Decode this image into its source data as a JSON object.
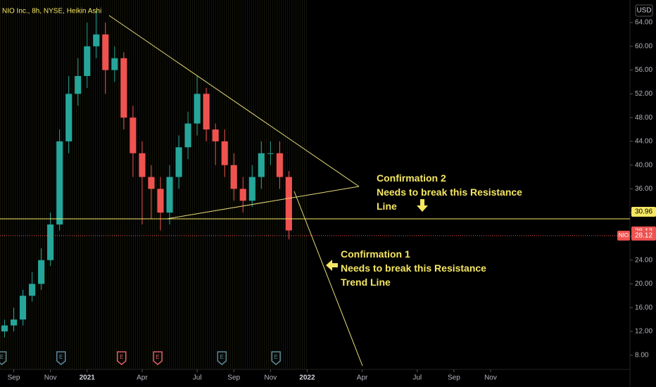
{
  "chart_data": {
    "type": "candlestick",
    "title": "NIO Inc., 8h, NYSE, Heikin Ashi",
    "currency": "USD",
    "x": [
      -0.5,
      0,
      0.5,
      1,
      1.5,
      2,
      2.5,
      3,
      3.5,
      4,
      4.5,
      5,
      5.5,
      6,
      6.5,
      7,
      7.5,
      8,
      8.5,
      9,
      9.5,
      10,
      10.5,
      11,
      11.5,
      12,
      12.5,
      13,
      13.5,
      14,
      14.5,
      15
    ],
    "open": [
      12,
      13,
      14,
      18,
      20,
      24,
      30,
      44,
      52,
      55,
      60,
      62,
      56,
      58,
      48,
      42,
      38,
      36,
      32,
      38,
      43,
      47,
      52,
      46,
      44,
      40,
      36,
      34,
      38,
      42,
      42,
      38
    ],
    "high": [
      14,
      16,
      19,
      22,
      26,
      32,
      46,
      55,
      58,
      64,
      66,
      64,
      60,
      59,
      50,
      44,
      40,
      38,
      40,
      45,
      49,
      55,
      53,
      47,
      46,
      42,
      38,
      40,
      44,
      44,
      44,
      39
    ],
    "low": [
      11,
      12,
      13,
      17,
      19,
      23,
      29,
      42,
      50,
      53,
      58,
      52,
      54,
      46,
      38,
      30,
      31,
      29,
      30,
      36,
      41,
      45,
      44,
      40,
      38,
      34,
      32,
      33,
      36,
      40,
      36,
      27.5
    ],
    "close": [
      13,
      14,
      18,
      20,
      24,
      30,
      44,
      52,
      55,
      60,
      62,
      56,
      58,
      48,
      42,
      38,
      36,
      32,
      38,
      43,
      47,
      52,
      46,
      44,
      40,
      36,
      34,
      38,
      42,
      42,
      38,
      29
    ],
    "up_color": "#26a69a",
    "down_color": "#ef5350",
    "xlim": [
      -0.75,
      33.6
    ],
    "xticks": [
      {
        "value": 0,
        "label": "Sep"
      },
      {
        "value": 2,
        "label": "Nov"
      },
      {
        "value": 4,
        "label": "2021"
      },
      {
        "value": 7,
        "label": "Apr"
      },
      {
        "value": 10,
        "label": "Jul"
      },
      {
        "value": 12,
        "label": "Sep"
      },
      {
        "value": 14,
        "label": "Nov"
      },
      {
        "value": 16,
        "label": "2022"
      },
      {
        "value": 19,
        "label": "Apr"
      },
      {
        "value": 22,
        "label": "Jul"
      },
      {
        "value": 24,
        "label": "Sep"
      },
      {
        "value": 26,
        "label": "Nov"
      }
    ],
    "ylim": [
      5.6,
      67.8
    ],
    "yticks": [
      {
        "value": 8,
        "label": "8.00"
      },
      {
        "value": 12,
        "label": "12.00"
      },
      {
        "value": 16,
        "label": "16.00"
      },
      {
        "value": 20,
        "label": "20.00"
      },
      {
        "value": 24,
        "label": "24.00"
      },
      {
        "value": 28,
        "label": "28.00"
      },
      {
        "value": 32,
        "label": "32.00"
      },
      {
        "value": 36,
        "label": "36.00"
      },
      {
        "value": 40,
        "label": "40.00"
      },
      {
        "value": 44,
        "label": "44.00"
      },
      {
        "value": 48,
        "label": "48.00"
      },
      {
        "value": 52,
        "label": "52.00"
      },
      {
        "value": 56,
        "label": "56.00"
      },
      {
        "value": 60,
        "label": "60.00"
      },
      {
        "value": 64,
        "label": "64.00"
      }
    ],
    "price_lines": [
      {
        "value": 30.96,
        "color": "#f5e663"
      },
      {
        "value": 28.13,
        "color": "#ef5350"
      }
    ],
    "last": {
      "symbol": "NIO",
      "value": 28.12,
      "color": "#ef5350"
    },
    "events": [
      {
        "x": -0.65,
        "label": "E",
        "color": "#5b8a9a"
      },
      {
        "x": 2.58,
        "label": "E",
        "color": "#5b8a9a"
      },
      {
        "x": 5.88,
        "label": "E",
        "color": "#e05a6a"
      },
      {
        "x": 7.85,
        "label": "E",
        "color": "#e05a6a"
      },
      {
        "x": 11.35,
        "label": "E",
        "color": "#5b8a9a"
      },
      {
        "x": 14.3,
        "label": "E",
        "color": "#5b8a9a"
      }
    ],
    "annotations": [
      [
        "Confirmation 2",
        "Needs to break this Resistance",
        "Line"
      ],
      [
        "Confirmation 1",
        "Needs to break this Resistance",
        "Trend Line"
      ]
    ]
  }
}
